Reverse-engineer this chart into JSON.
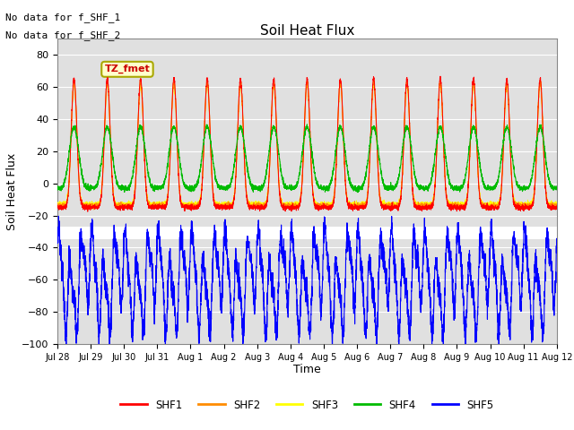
{
  "title": "Soil Heat Flux",
  "ylabel": "Soil Heat Flux",
  "xlabel": "Time",
  "ylim": [
    -100,
    90
  ],
  "yticks": [
    -100,
    -80,
    -60,
    -40,
    -20,
    0,
    20,
    40,
    60,
    80
  ],
  "xtick_labels": [
    "Jul 28",
    "Jul 29",
    "Jul 30",
    "Jul 31",
    "Aug 1",
    "Aug 2",
    "Aug 3",
    "Aug 4",
    "Aug 5",
    "Aug 6",
    "Aug 7",
    "Aug 8",
    "Aug 9",
    "Aug 10",
    "Aug 11",
    "Aug 12"
  ],
  "no_data_text_1": "No data for f_SHF_1",
  "no_data_text_2": "No data for f_SHF_2",
  "annotation_text": "TZ_fmet",
  "colors": {
    "SHF1": "#ff0000",
    "SHF2": "#ff8c00",
    "SHF3": "#ffff00",
    "SHF4": "#00bb00",
    "SHF5": "#0000ff"
  },
  "legend_labels": [
    "SHF1",
    "SHF2",
    "SHF3",
    "SHF4",
    "SHF5"
  ],
  "bg_color": "#e0e0e0",
  "separator_color": "#c0c0c0",
  "n_days": 15,
  "points_per_day": 288,
  "shf5_base": -60,
  "shf5_amplitude": 22,
  "shf5_freq": 3.0
}
